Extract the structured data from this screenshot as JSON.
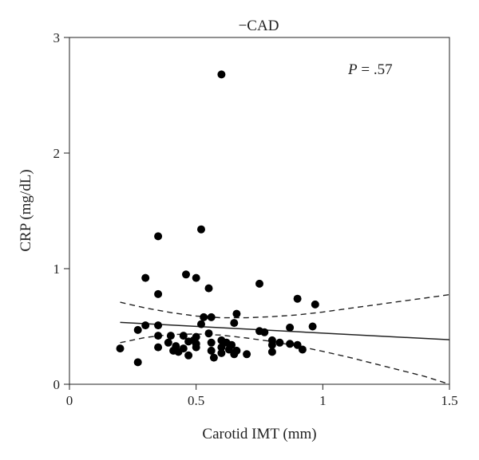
{
  "chart_data": {
    "type": "scatter",
    "title": "−CAD",
    "xlabel": "Carotid IMT (mm)",
    "ylabel": "CRP (mg/dL)",
    "xlim": [
      0,
      1.5
    ],
    "ylim": [
      0,
      3
    ],
    "x_ticks": [
      "0",
      "0.5",
      "1",
      "1.5"
    ],
    "y_ticks": [
      "0",
      "1",
      "2",
      "3"
    ],
    "grid": false,
    "annotation": {
      "p_symbol": "P",
      "p_rest": " = .57"
    },
    "points": [
      {
        "x": 0.2,
        "y": 0.31
      },
      {
        "x": 0.27,
        "y": 0.19
      },
      {
        "x": 0.27,
        "y": 0.47
      },
      {
        "x": 0.3,
        "y": 0.51
      },
      {
        "x": 0.3,
        "y": 0.92
      },
      {
        "x": 0.35,
        "y": 1.28
      },
      {
        "x": 0.35,
        "y": 0.78
      },
      {
        "x": 0.35,
        "y": 0.51
      },
      {
        "x": 0.35,
        "y": 0.42
      },
      {
        "x": 0.35,
        "y": 0.32
      },
      {
        "x": 0.39,
        "y": 0.36
      },
      {
        "x": 0.4,
        "y": 0.42
      },
      {
        "x": 0.41,
        "y": 0.29
      },
      {
        "x": 0.42,
        "y": 0.33
      },
      {
        "x": 0.43,
        "y": 0.28
      },
      {
        "x": 0.45,
        "y": 0.42
      },
      {
        "x": 0.45,
        "y": 0.31
      },
      {
        "x": 0.46,
        "y": 0.95
      },
      {
        "x": 0.47,
        "y": 0.25
      },
      {
        "x": 0.47,
        "y": 0.37
      },
      {
        "x": 0.49,
        "y": 0.38
      },
      {
        "x": 0.5,
        "y": 0.92
      },
      {
        "x": 0.5,
        "y": 0.41
      },
      {
        "x": 0.5,
        "y": 0.35
      },
      {
        "x": 0.5,
        "y": 0.32
      },
      {
        "x": 0.52,
        "y": 1.34
      },
      {
        "x": 0.52,
        "y": 0.52
      },
      {
        "x": 0.53,
        "y": 0.58
      },
      {
        "x": 0.55,
        "y": 0.83
      },
      {
        "x": 0.55,
        "y": 0.44
      },
      {
        "x": 0.56,
        "y": 0.58
      },
      {
        "x": 0.56,
        "y": 0.36
      },
      {
        "x": 0.56,
        "y": 0.29
      },
      {
        "x": 0.57,
        "y": 0.23
      },
      {
        "x": 0.6,
        "y": 2.68
      },
      {
        "x": 0.6,
        "y": 0.38
      },
      {
        "x": 0.6,
        "y": 0.32
      },
      {
        "x": 0.6,
        "y": 0.27
      },
      {
        "x": 0.62,
        "y": 0.36
      },
      {
        "x": 0.63,
        "y": 0.3
      },
      {
        "x": 0.64,
        "y": 0.34
      },
      {
        "x": 0.65,
        "y": 0.26
      },
      {
        "x": 0.65,
        "y": 0.53
      },
      {
        "x": 0.66,
        "y": 0.61
      },
      {
        "x": 0.66,
        "y": 0.29
      },
      {
        "x": 0.7,
        "y": 0.26
      },
      {
        "x": 0.75,
        "y": 0.87
      },
      {
        "x": 0.75,
        "y": 0.46
      },
      {
        "x": 0.77,
        "y": 0.45
      },
      {
        "x": 0.8,
        "y": 0.38
      },
      {
        "x": 0.8,
        "y": 0.34
      },
      {
        "x": 0.8,
        "y": 0.28
      },
      {
        "x": 0.83,
        "y": 0.36
      },
      {
        "x": 0.87,
        "y": 0.49
      },
      {
        "x": 0.87,
        "y": 0.35
      },
      {
        "x": 0.9,
        "y": 0.74
      },
      {
        "x": 0.9,
        "y": 0.34
      },
      {
        "x": 0.92,
        "y": 0.3
      },
      {
        "x": 0.96,
        "y": 0.5
      },
      {
        "x": 0.97,
        "y": 0.69
      }
    ],
    "regression_line": {
      "x": [
        0.2,
        1.5
      ],
      "y": [
        0.535,
        0.385
      ]
    },
    "ci_upper": {
      "x": [
        0.2,
        0.3,
        0.4,
        0.5,
        0.6,
        0.7,
        0.8,
        0.9,
        1.0,
        1.1,
        1.2,
        1.3,
        1.4,
        1.5
      ],
      "y": [
        0.71,
        0.66,
        0.62,
        0.59,
        0.575,
        0.575,
        0.585,
        0.6,
        0.625,
        0.655,
        0.685,
        0.715,
        0.745,
        0.775
      ]
    },
    "ci_lower": {
      "x": [
        0.2,
        0.3,
        0.4,
        0.5,
        0.6,
        0.7,
        0.8,
        0.9,
        1.0,
        1.1,
        1.2,
        1.3,
        1.4,
        1.5
      ],
      "y": [
        0.36,
        0.405,
        0.43,
        0.435,
        0.425,
        0.4,
        0.37,
        0.33,
        0.285,
        0.235,
        0.18,
        0.125,
        0.07,
        0.0
      ]
    }
  }
}
